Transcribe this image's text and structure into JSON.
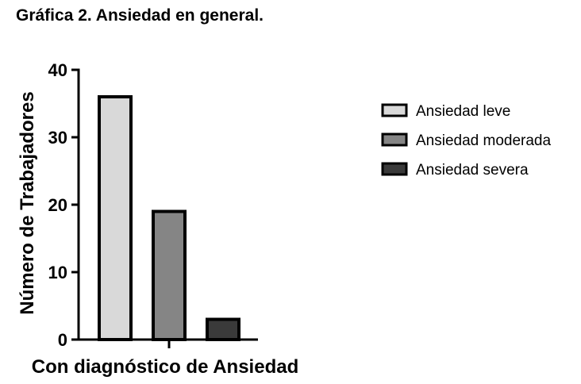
{
  "chart_data": {
    "type": "bar",
    "title": "Gráfica 2. Ansiedad en general.",
    "xlabel": "Con diagnóstico de Ansiedad",
    "ylabel": "Número de Trabajadores",
    "ylim": [
      0,
      40
    ],
    "yticks": [
      0,
      10,
      20,
      30,
      40
    ],
    "grid": false,
    "legend_position": "right",
    "series": [
      {
        "name": "Ansiedad leve",
        "values": [
          36
        ],
        "color": "#d9d9d9"
      },
      {
        "name": "Ansiedad moderada",
        "values": [
          19
        ],
        "color": "#858585"
      },
      {
        "name": "Ansiedad severa",
        "values": [
          3
        ],
        "color": "#3a3a3a"
      }
    ]
  }
}
